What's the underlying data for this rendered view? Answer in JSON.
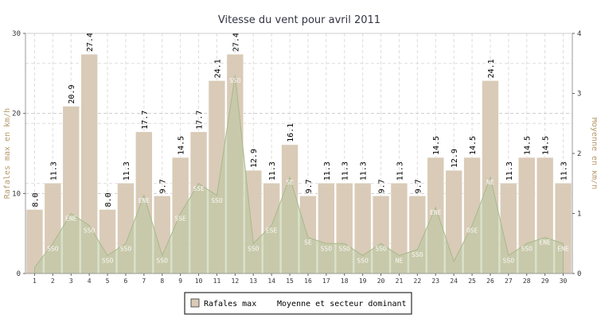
{
  "chart_data": {
    "type": "bar",
    "title": "Vitesse du vent pour avril 2011",
    "xlabel": "",
    "ylabel": "Rafales max en km/h",
    "y2label": "Moyenne en km/h",
    "categories": [
      "1",
      "2",
      "3",
      "4",
      "5",
      "6",
      "7",
      "8",
      "9",
      "10",
      "11",
      "12",
      "13",
      "14",
      "15",
      "16",
      "17",
      "18",
      "19",
      "20",
      "21",
      "22",
      "23",
      "24",
      "25",
      "26",
      "27",
      "28",
      "29",
      "30"
    ],
    "ylim": [
      0,
      30
    ],
    "y2lim": [
      0,
      4
    ],
    "yticks": [
      "0",
      "10",
      "20",
      "30"
    ],
    "y2ticks": [
      "0",
      "1",
      "2",
      "3",
      "4"
    ],
    "grid": true,
    "legend_position": "bottom",
    "series": [
      {
        "name": "Rafales max",
        "type": "bar",
        "axis": "left",
        "color": "#d9cbb7",
        "values": [
          8.0,
          11.3,
          20.9,
          27.4,
          8.0,
          11.3,
          17.7,
          9.7,
          14.5,
          17.7,
          24.1,
          27.4,
          12.9,
          11.3,
          16.1,
          9.7,
          11.3,
          11.3,
          11.3,
          9.7,
          11.3,
          9.7,
          14.5,
          12.9,
          14.5,
          24.1,
          11.3,
          14.5,
          14.5,
          11.3
        ],
        "labels": [
          "8.0",
          "11.3",
          "20.9",
          "27.4",
          "8.0",
          "11.3",
          "17.7",
          "9.7",
          "14.5",
          "17.7",
          "24.1",
          "27.4",
          "12.9",
          "11.3",
          "16.1",
          "9.7",
          "11.3",
          "11.3",
          "11.3",
          "9.7",
          "11.3",
          "9.7",
          "14.5",
          "12.9",
          "14.5",
          "24.1",
          "11.3",
          "14.5",
          "14.5",
          "11.3"
        ]
      },
      {
        "name": "Moyenne et secteur dominant",
        "type": "area",
        "axis": "right",
        "color": "#b9c8a0",
        "values": [
          0.1,
          0.5,
          1.0,
          0.8,
          0.3,
          0.5,
          1.3,
          0.3,
          1.0,
          1.5,
          1.3,
          3.3,
          0.5,
          0.8,
          1.6,
          0.6,
          0.5,
          0.5,
          0.3,
          0.5,
          0.3,
          0.4,
          1.1,
          0.2,
          0.8,
          1.6,
          0.3,
          0.5,
          0.6,
          0.5
        ],
        "sectors": [
          "",
          "SSO",
          "ENE",
          "SSO",
          "SSO",
          "SSO",
          "ENE",
          "SSO",
          "SSE",
          "SSE",
          "SSO",
          "SSO",
          "SSO",
          "ESE",
          "SE",
          "SE",
          "SSO",
          "SSO",
          "SSO",
          "SSO",
          "NE",
          "SSO",
          "ENE",
          "",
          "OSE",
          "NE",
          "SSO",
          "SSO",
          "ENE",
          "ENE"
        ]
      }
    ]
  }
}
